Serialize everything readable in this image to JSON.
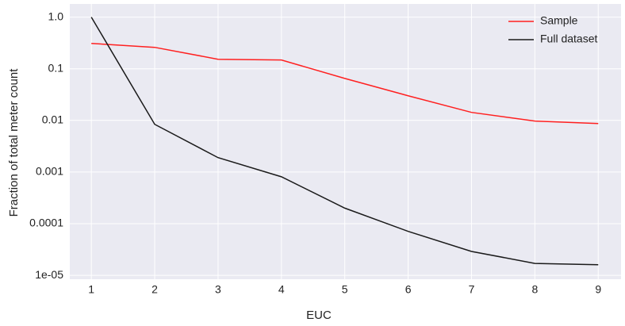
{
  "chart_data": {
    "type": "line",
    "x_label": "EUC",
    "y_label": "Fraction of total meter count",
    "x": [
      1,
      2,
      3,
      4,
      5,
      6,
      7,
      8,
      9
    ],
    "xlim": [
      0.66,
      9.36
    ],
    "xticks": [
      1,
      2,
      3,
      4,
      5,
      6,
      7,
      8,
      9
    ],
    "yscale": "log",
    "ylim": [
      8.4e-06,
      1.8
    ],
    "yticks": [
      {
        "value": 1,
        "label": "1.0"
      },
      0.1,
      0.01,
      0.001,
      0.0001,
      {
        "value": 1e-05,
        "label": "1e-05"
      }
    ],
    "grid": true,
    "legend": "upper right",
    "series": [
      {
        "name": "Sample",
        "color": "#ff2020",
        "values": [
          0.31,
          0.26,
          0.153,
          0.148,
          0.065,
          0.03,
          0.0143,
          0.0097,
          0.0087
        ]
      },
      {
        "name": "Full dataset",
        "color": "#1a1a1a",
        "values": [
          1.0,
          0.0084,
          0.0019,
          0.00081,
          0.0002,
          7.1e-05,
          2.9e-05,
          1.7e-05,
          1.6e-05
        ]
      }
    ]
  }
}
